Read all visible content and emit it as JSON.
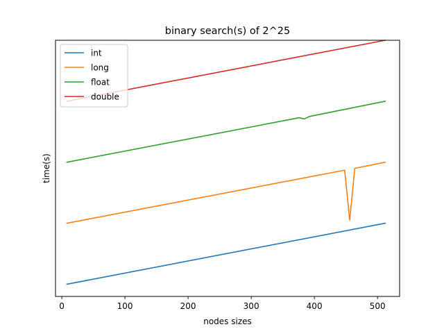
{
  "chart_data": {
    "type": "line",
    "title": "binary search(s) of 2^25",
    "xlabel": "nodes sizes",
    "ylabel": "time(s)",
    "xlim": [
      -10,
      535
    ],
    "ylim": [
      -0.2,
      4.0
    ],
    "xticks": [
      0,
      100,
      200,
      300,
      400,
      500
    ],
    "xtick_labels": [
      "0",
      "100",
      "200",
      "300",
      "400",
      "500"
    ],
    "yticks_shown": false,
    "grid": false,
    "legend_position": "top-left",
    "series": [
      {
        "name": "int",
        "color": "#1f77b4",
        "x": [
          8,
          512
        ],
        "y": [
          0.0,
          1.0
        ]
      },
      {
        "name": "long",
        "color": "#ff7f0e",
        "x": [
          8,
          448,
          456,
          464,
          512
        ],
        "y": [
          1.0,
          1.87,
          1.05,
          1.9,
          2.0
        ]
      },
      {
        "name": "float",
        "color": "#2ca02c",
        "x": [
          8,
          376,
          384,
          392,
          512
        ],
        "y": [
          2.0,
          2.73,
          2.71,
          2.75,
          3.0
        ]
      },
      {
        "name": "double",
        "color": "#d62728",
        "x": [
          8,
          512
        ],
        "y": [
          3.0,
          4.0
        ]
      }
    ]
  }
}
